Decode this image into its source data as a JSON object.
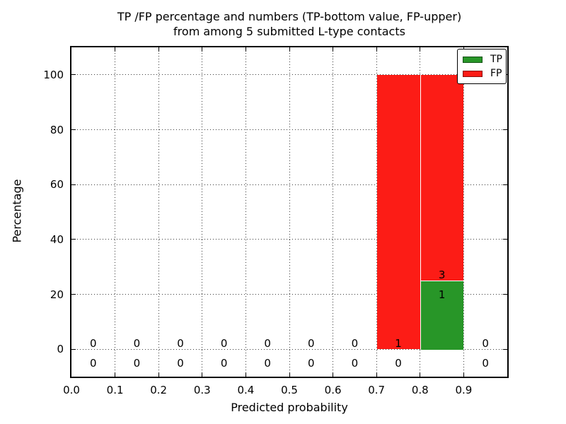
{
  "figure": {
    "title_line1": "TP /FP percentage and numbers (TP-bottom value, FP-upper)",
    "title_line2": "from among 5 submitted L-type contacts",
    "xlabel": "Predicted probability",
    "ylabel": "Percentage"
  },
  "legend": {
    "position": "upper right",
    "items": [
      {
        "label": "TP",
        "color": "#289628"
      },
      {
        "label": "FP",
        "color": "#fc1c16"
      }
    ]
  },
  "chart_data": {
    "type": "bar",
    "stacked": true,
    "title": "TP /FP percentage and numbers (TP-bottom value, FP-upper) from among 5 submitted L-type contacts",
    "xlabel": "Predicted probability",
    "ylabel": "Percentage",
    "xlim": [
      0.0,
      1.0
    ],
    "ylim": [
      -10,
      110
    ],
    "xtick_labels": [
      "0.0",
      "0.1",
      "0.2",
      "0.3",
      "0.4",
      "0.5",
      "0.6",
      "0.7",
      "0.8",
      "0.9"
    ],
    "ytick_values": [
      0,
      20,
      40,
      60,
      80,
      100
    ],
    "grid": {
      "style": "dotted",
      "x": true,
      "y": true
    },
    "legend_position": "upper right",
    "bin_width": 0.1,
    "bin_edges": [
      0.0,
      0.1,
      0.2,
      0.3,
      0.4,
      0.5,
      0.6,
      0.7,
      0.8,
      0.9,
      1.0
    ],
    "bin_centers": [
      0.05,
      0.15,
      0.25,
      0.35,
      0.45,
      0.55,
      0.65,
      0.75,
      0.85,
      0.95
    ],
    "series": [
      {
        "name": "TP",
        "color": "#289628",
        "counts": [
          0,
          0,
          0,
          0,
          0,
          0,
          0,
          0,
          1,
          0
        ],
        "percent": [
          0,
          0,
          0,
          0,
          0,
          0,
          0,
          0,
          25,
          0
        ]
      },
      {
        "name": "FP",
        "color": "#fc1c16",
        "counts": [
          0,
          0,
          0,
          0,
          0,
          0,
          0,
          1,
          3,
          0
        ],
        "percent": [
          0,
          0,
          0,
          0,
          0,
          0,
          0,
          100,
          75,
          0
        ]
      }
    ],
    "annotations": "Per bin, FP count is printed above the TP/FP stack boundary and TP count below it; total submitted contacts = 5"
  }
}
